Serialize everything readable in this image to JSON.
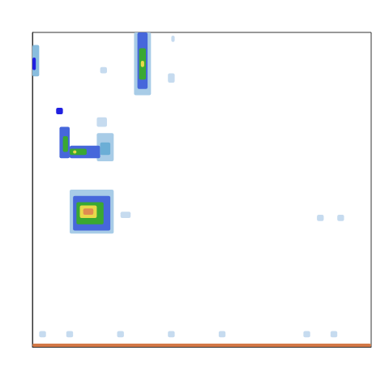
{
  "chart_data": {
    "type": "heatmap",
    "xlim": [
      0,
      100
    ],
    "ylim": [
      0,
      100
    ],
    "tick_labels": false,
    "grid": false,
    "value_range": [
      0,
      10
    ],
    "cells": [
      [
        0,
        100,
        0,
        1,
        8.5
      ],
      [
        0,
        2,
        86,
        96,
        2.5
      ],
      [
        0,
        1,
        88,
        92,
        4
      ],
      [
        30,
        35,
        80,
        100,
        2
      ],
      [
        31,
        34,
        82,
        100,
        3.5
      ],
      [
        31.5,
        33.5,
        85,
        95,
        5.5
      ],
      [
        32,
        33,
        89,
        91,
        7
      ],
      [
        7,
        9,
        74,
        76,
        4
      ],
      [
        8,
        11,
        60,
        70,
        3.5
      ],
      [
        9,
        10.5,
        62,
        67,
        5.5
      ],
      [
        19,
        24,
        59,
        68,
        2
      ],
      [
        11,
        20,
        60,
        64,
        3.5
      ],
      [
        20,
        23,
        61,
        65,
        3
      ],
      [
        11,
        16,
        61,
        63,
        5.5
      ],
      [
        12,
        13,
        61.5,
        62.5,
        7
      ],
      [
        11,
        24,
        36,
        50,
        2
      ],
      [
        12,
        23,
        37,
        48,
        3.5
      ],
      [
        13,
        21,
        39,
        46,
        5.5
      ],
      [
        14,
        19,
        41,
        45,
        7
      ],
      [
        15,
        18,
        42,
        44,
        8
      ],
      [
        20,
        22,
        87,
        89,
        1.5
      ],
      [
        40,
        42,
        84,
        87,
        1.5
      ],
      [
        41,
        42,
        97,
        99,
        1.5
      ],
      [
        19,
        22,
        70,
        73,
        1.5
      ],
      [
        26,
        29,
        41,
        43,
        1.5
      ],
      [
        84,
        86,
        40,
        42,
        1.5
      ],
      [
        90,
        92,
        40,
        42,
        1.5
      ],
      [
        2,
        4,
        3,
        5,
        1.5
      ],
      [
        10,
        12,
        3,
        5,
        1.5
      ],
      [
        25,
        27,
        3,
        5,
        1.5
      ],
      [
        40,
        42,
        3,
        5,
        1.5
      ],
      [
        55,
        57,
        3,
        5,
        1.5
      ],
      [
        80,
        82,
        3,
        5,
        1.5
      ],
      [
        88,
        90,
        3,
        5,
        1.5
      ]
    ]
  }
}
